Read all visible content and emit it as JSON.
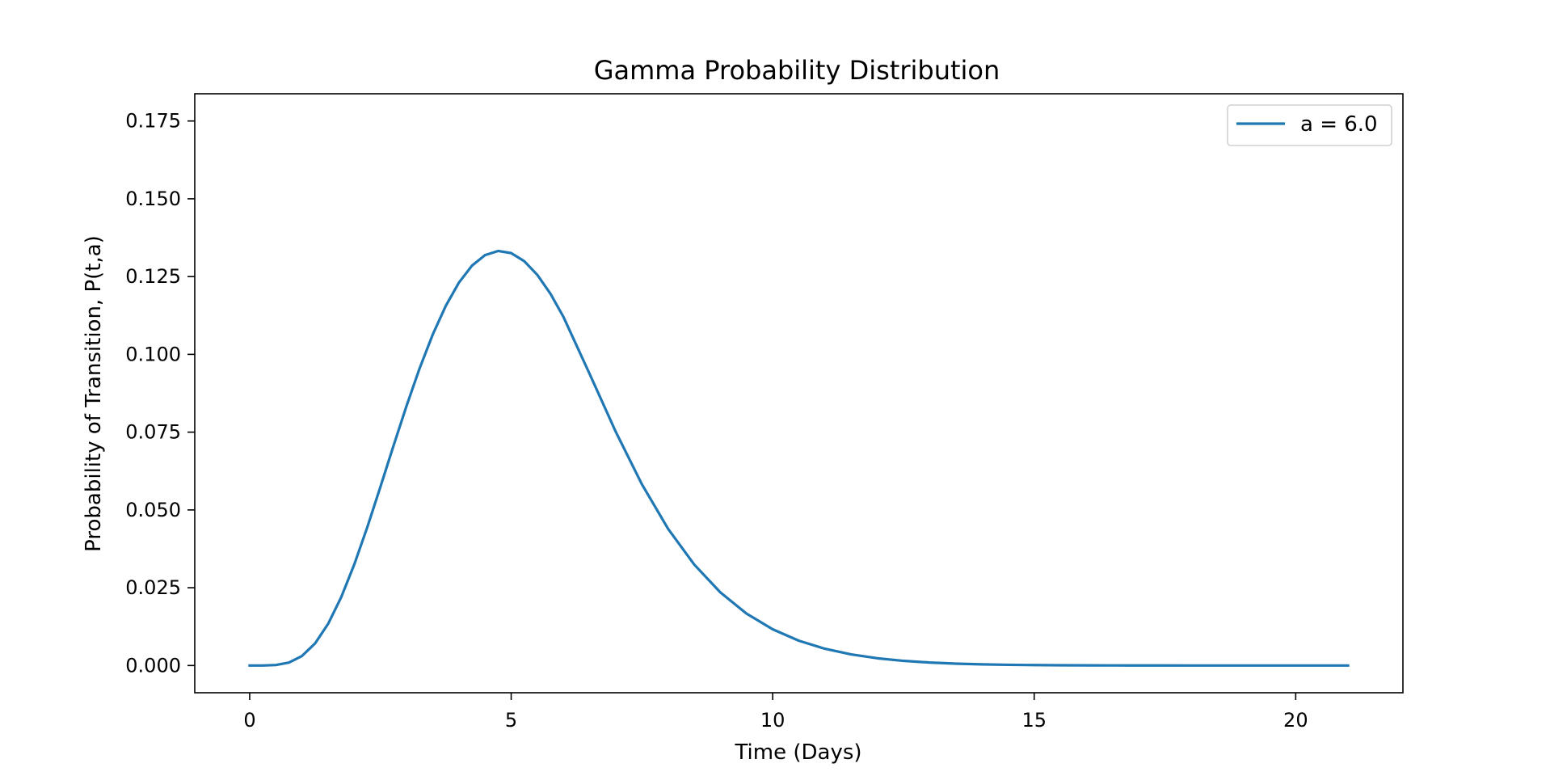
{
  "chart_data": {
    "type": "line",
    "title": "Gamma Probability Distribution",
    "xlabel": "Time (Days)",
    "ylabel": "Probability of Transition, P(t,a)",
    "xlim": [
      -1.05,
      22.05
    ],
    "ylim": [
      -0.00875,
      0.18375
    ],
    "xticks": [
      0,
      5,
      10,
      15,
      20
    ],
    "yticks": [
      0.0,
      0.025,
      0.05,
      0.075,
      0.1,
      0.125,
      0.15,
      0.175
    ],
    "xtick_labels": [
      "0",
      "5",
      "10",
      "15",
      "20"
    ],
    "ytick_labels": [
      "0.000",
      "0.025",
      "0.050",
      "0.075",
      "0.100",
      "0.125",
      "0.150",
      "0.175"
    ],
    "grid": false,
    "legend_position": "top-right",
    "series": [
      {
        "name": "a = 6.0",
        "color": "#1f77b4",
        "x": [
          0,
          0.25,
          0.5,
          0.75,
          1.0,
          1.25,
          1.5,
          1.75,
          2.0,
          2.25,
          2.5,
          2.75,
          3.0,
          3.25,
          3.5,
          3.75,
          4.0,
          4.25,
          4.5,
          4.75,
          5.0,
          5.25,
          5.5,
          5.75,
          6.0,
          6.5,
          7.0,
          7.5,
          8.0,
          8.5,
          9.0,
          9.5,
          10.0,
          10.5,
          11.0,
          11.5,
          12.0,
          12.5,
          13.0,
          13.5,
          14.0,
          14.5,
          15.0,
          15.5,
          16.0,
          16.5,
          17.0,
          17.5,
          18.0,
          18.5,
          19.0,
          19.5,
          20.0,
          20.5,
          21.0
        ],
        "y": [
          0.0,
          6.4e-06,
          0.0001579,
          0.0009481,
          0.0030657,
          0.0071003,
          0.0133918,
          0.0219497,
          0.0324885,
          0.0445141,
          0.0574274,
          0.0706107,
          0.083486,
          0.0955457,
          0.1063668,
          0.1156151,
          0.1230455,
          0.1284993,
          0.131897,
          0.1332292,
          0.1325451,
          0.1299396,
          0.1255429,
          0.1195095,
          0.1120117,
          0.0937022,
          0.075109,
          0.0582218,
          0.0439451,
          0.0324461,
          0.0234949,
          0.0166905,
          0.0116431,
          0.0079796,
          0.0053769,
          0.0035661,
          0.00233,
          0.0015025,
          0.0009561,
          0.0006011,
          0.0003734,
          0.0002296,
          0.0001398,
          8.43e-05,
          5.04e-05,
          2.98e-05,
          1.75e-05,
          1.02e-05,
          5.9e-06,
          3.4e-06,
          1.9e-06,
          1.1e-06,
          6e-07,
          3e-07,
          2e-07
        ]
      }
    ]
  }
}
